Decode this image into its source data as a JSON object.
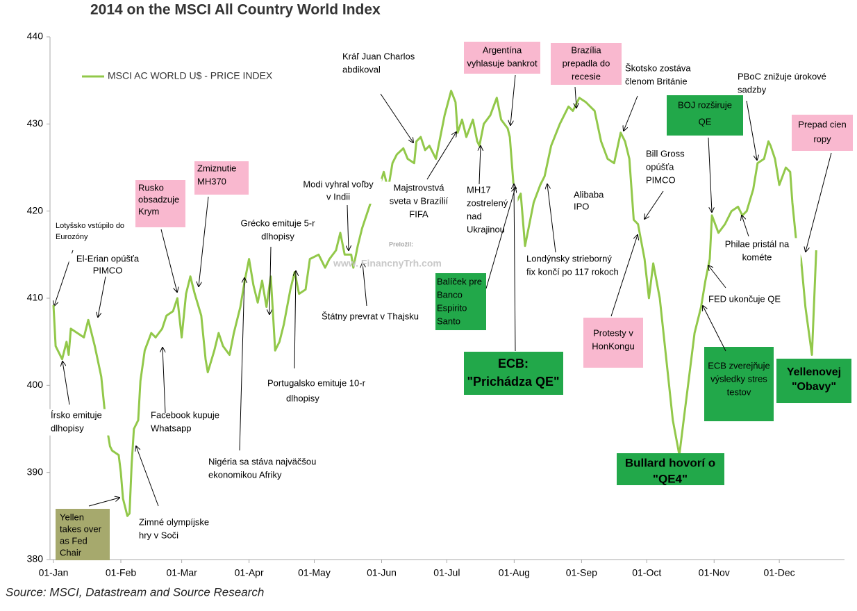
{
  "chart_data": {
    "type": "line",
    "title": "2014 on the MSCI All Country World Index",
    "source": "Source: MSCI, Datastream and Source Research",
    "legend": "upper left",
    "x": [
      0,
      1,
      4,
      6,
      7,
      8,
      11,
      14,
      16,
      19,
      22,
      24,
      26,
      27,
      30,
      31,
      32,
      34,
      35,
      36,
      37,
      39,
      40,
      42,
      45,
      47,
      50,
      52,
      55,
      57,
      59,
      61,
      63,
      65,
      68,
      70,
      71,
      74,
      76,
      78,
      81,
      83,
      86,
      88,
      90,
      92,
      94,
      96,
      98,
      100,
      102,
      104,
      106,
      109,
      111,
      113,
      116,
      118,
      122,
      125,
      127,
      130,
      132,
      134,
      137,
      138,
      140,
      142,
      144,
      146,
      149,
      152,
      154,
      156,
      158,
      161,
      163,
      166,
      167,
      169,
      171,
      173,
      176,
      178,
      180,
      183,
      185,
      186,
      188,
      190,
      193,
      195,
      196,
      198,
      201,
      204,
      206,
      209,
      210,
      212,
      213,
      215,
      217,
      221,
      224,
      226,
      229,
      233,
      237,
      239,
      242,
      245,
      247,
      249,
      252,
      255,
      258,
      261,
      263,
      265,
      267,
      269,
      272,
      274,
      276,
      279,
      282,
      285,
      288,
      290,
      292,
      295,
      298,
      300,
      302,
      303,
      306,
      309,
      312,
      315,
      317,
      319,
      322,
      324,
      327,
      329,
      330,
      332,
      334,
      337,
      339,
      340,
      342,
      344,
      346,
      349,
      351
    ],
    "series": [
      {
        "name": "MSCI AC WORLD U$ - PRICE INDEX",
        "color": "#92c84a",
        "values": [
          409.2,
          404.5,
          403,
          405,
          403.5,
          406.5,
          406,
          405.5,
          407.5,
          404.5,
          401,
          396,
          393,
          392.5,
          392,
          390,
          387,
          385,
          385.3,
          391,
          395,
          396,
          400.5,
          404,
          406,
          405.5,
          406.5,
          408,
          408.5,
          410,
          405.5,
          410.5,
          412.5,
          410.5,
          408,
          403,
          401.5,
          404,
          406,
          404.5,
          403.5,
          406,
          409,
          412,
          414.5,
          411.5,
          409.5,
          412,
          409,
          412.5,
          404,
          405,
          407,
          411,
          413,
          410.5,
          411,
          414.5,
          415,
          413.5,
          414.5,
          415.5,
          417.5,
          415,
          415,
          413.5,
          416,
          418,
          419.5,
          421,
          422,
          424.5,
          422.5,
          425.5,
          426.5,
          427.2,
          426,
          425.5,
          428,
          428.5,
          427,
          427.5,
          426,
          428.5,
          431,
          433.8,
          432.5,
          429,
          430.5,
          428.5,
          430.5,
          428,
          427.5,
          430,
          431,
          433,
          430.5,
          429.5,
          428.5,
          422,
          421,
          422,
          416,
          421,
          423,
          424,
          427.5,
          430,
          432,
          431.5,
          433,
          432.5,
          432,
          431.5,
          428,
          426,
          425.5,
          429,
          428,
          426,
          419,
          418.5,
          414.5,
          410,
          414,
          410,
          403,
          396,
          392,
          396,
          400,
          406,
          409,
          412,
          414.5,
          419.5,
          417.5,
          418.5,
          420,
          420.5,
          419.5,
          420,
          422.5,
          425.5,
          426,
          428,
          427.5,
          426,
          423,
          425,
          424.5,
          421,
          416,
          414.5,
          409,
          403.5,
          415.5
        ]
      }
    ],
    "xlim": [
      0,
      364
    ],
    "xticks": [
      {
        "value": 0,
        "label": "01-Jan"
      },
      {
        "value": 31,
        "label": "01-Feb"
      },
      {
        "value": 59,
        "label": "01-Mar"
      },
      {
        "value": 90,
        "label": "01-Apr"
      },
      {
        "value": 120,
        "label": "01-May"
      },
      {
        "value": 151,
        "label": "01-Jun"
      },
      {
        "value": 181,
        "label": "01-Jul"
      },
      {
        "value": 212,
        "label": "01-Aug"
      },
      {
        "value": 243,
        "label": "01-Sep"
      },
      {
        "value": 273,
        "label": "01-Oct"
      },
      {
        "value": 304,
        "label": "01-Nov"
      },
      {
        "value": 334,
        "label": "01-Dec"
      }
    ],
    "ylim": [
      380,
      440
    ],
    "yticks": [
      380,
      390,
      400,
      410,
      420,
      430,
      440
    ],
    "annotations": [
      {
        "lines": [
          "Lotyšsko vstúpilo do",
          "Eurozóny"
        ]
      },
      {
        "lines": [
          "El-Erian opúšťa",
          "PIMCO"
        ]
      },
      {
        "lines": [
          "Rusko",
          "obsadzuje",
          "Krym"
        ],
        "color": "#f9b8cf"
      },
      {
        "lines": [
          "Zmiznutie",
          "MH370"
        ],
        "color": "#f9b8cf"
      },
      {
        "lines": [
          "Írsko emituje",
          "dlhopisy"
        ]
      },
      {
        "lines": [
          "Facebook kupuje",
          "Whatsapp"
        ]
      },
      {
        "lines": [
          "Yellen",
          "takes over",
          "as Fed",
          "Chair"
        ],
        "color": "#a6a96d"
      },
      {
        "lines": [
          "Zimné olympíjske",
          "hry v Soči"
        ]
      },
      {
        "lines": [
          "Nigéria sa stáva najväčšou",
          "ekonomikou Afriky"
        ]
      },
      {
        "lines": [
          "Grécko emituje 5-r",
          "dlhopisy"
        ]
      },
      {
        "lines": [
          "Portugalsko emituje 10-r",
          "dlhopisy"
        ]
      },
      {
        "lines": [
          "Modi vyhral voľby",
          "v Indii"
        ]
      },
      {
        "lines": [
          "Štátny prevrat v Thajsku"
        ]
      },
      {
        "lines": [
          "Kráľ Juan Charlos",
          "abdikoval"
        ]
      },
      {
        "lines": [
          "Majstrovstvá",
          "sveta v Brazílií",
          "FIFA"
        ]
      },
      {
        "lines": [
          "Argentína",
          "vyhlasuje bankrot"
        ],
        "color": "#f9b8cf"
      },
      {
        "lines": [
          "MH17",
          "zostrelený",
          "nad",
          "Ukrajinou"
        ]
      },
      {
        "lines": [
          "Brazília",
          "prepadla do",
          "recesie"
        ],
        "color": "#f9b8cf"
      },
      {
        "lines": [
          "Škotsko zostáva",
          "členom Británie"
        ]
      },
      {
        "lines": [
          "PBoC znižuje úrokové",
          "sadzby"
        ]
      },
      {
        "lines": [
          "BOJ rozširuje",
          "QE"
        ],
        "color": "#22a84a"
      },
      {
        "lines": [
          "Prepad cien",
          "ropy"
        ],
        "color": "#f9b8cf"
      },
      {
        "lines": [
          "Bill Gross",
          "opúšťa",
          "PIMCO"
        ]
      },
      {
        "lines": [
          "Alibaba",
          "IPO"
        ]
      },
      {
        "lines": [
          "Londýnsky strieborný",
          "fix končí po 117 rokoch"
        ]
      },
      {
        "lines": [
          "Philae pristál na",
          "kométe"
        ]
      },
      {
        "lines": [
          "FED ukončuje QE"
        ]
      },
      {
        "lines": [
          "Balíček pre",
          "Banco",
          "Espirito",
          "Santo"
        ],
        "color": "#22a84a"
      },
      {
        "lines": [
          "ECB:",
          "\"Prichádza QE\""
        ],
        "color": "#22a84a"
      },
      {
        "lines": [
          "Protesty v",
          "HonKongu"
        ],
        "color": "#f9b8cf"
      },
      {
        "lines": [
          "Bullard hovorí o",
          "\"QE4\""
        ],
        "color": "#22a84a"
      },
      {
        "lines": [
          "ECB zverejňuje",
          "výsledky stres",
          "testov"
        ],
        "color": "#22a84a"
      },
      {
        "lines": [
          "Yellenovej",
          "\"Obavy\""
        ],
        "color": "#22a84a"
      },
      {
        "lines": [
          "Preložil:"
        ]
      },
      {
        "lines": [
          "www. FinancnyTrh.com"
        ]
      }
    ]
  }
}
